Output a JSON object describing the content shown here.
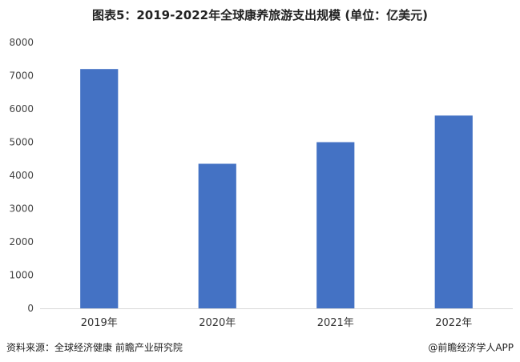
{
  "title": "图表5：2019-2022年全球康养旅游支出规模 (单位：亿美元)",
  "footer": {
    "source": "资料来源：全球经济健康 前瞻产业研究院",
    "brand": "@前瞻经济学人APP"
  },
  "colors": {
    "bar": "#4472c4",
    "axis": "#d9d9d9",
    "text": "#444444"
  },
  "chart_data": {
    "type": "bar",
    "categories": [
      "2019年",
      "2020年",
      "2021年",
      "2022年"
    ],
    "values": [
      7200,
      4350,
      5000,
      5800
    ],
    "title": "图表5：2019-2022年全球康养旅游支出规模 (单位：亿美元)",
    "xlabel": "",
    "ylabel": "",
    "ylim": [
      0,
      8000
    ],
    "yticks": [
      0,
      1000,
      2000,
      3000,
      4000,
      5000,
      6000,
      7000,
      8000
    ],
    "grid": false,
    "legend": "none"
  }
}
